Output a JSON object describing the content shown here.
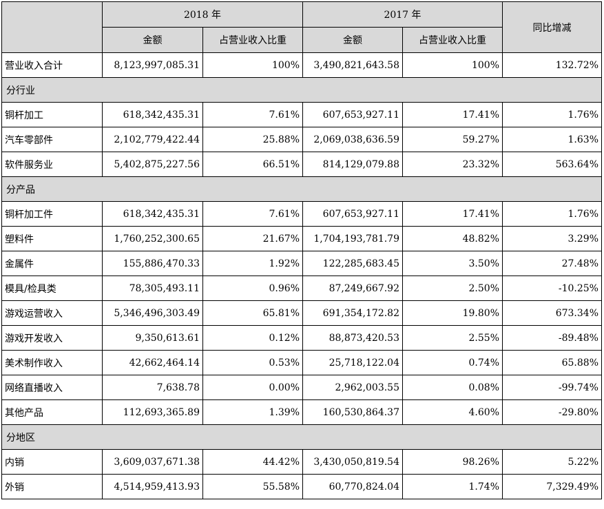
{
  "header": {
    "year_2018": "2018 年",
    "year_2017": "2017 年",
    "amount": "金额",
    "share": "占营业收入比重",
    "yoy": "同比增减"
  },
  "total": {
    "label": "营业收入合计",
    "a2018": "8,123,997,085.31",
    "s2018": "100%",
    "a2017": "3,490,821,643.58",
    "s2017": "100%",
    "yoy": "132.72%"
  },
  "sections": [
    {
      "title": "分行业",
      "rows": [
        {
          "label": "铜杆加工",
          "a2018": "618,342,435.31",
          "s2018": "7.61%",
          "a2017": "607,653,927.11",
          "s2017": "17.41%",
          "yoy": "1.76%"
        },
        {
          "label": "汽车零部件",
          "a2018": "2,102,779,422.44",
          "s2018": "25.88%",
          "a2017": "2,069,038,636.59",
          "s2017": "59.27%",
          "yoy": "1.63%"
        },
        {
          "label": "软件服务业",
          "a2018": "5,402,875,227.56",
          "s2018": "66.51%",
          "a2017": "814,129,079.88",
          "s2017": "23.32%",
          "yoy": "563.64%"
        }
      ]
    },
    {
      "title": "分产品",
      "rows": [
        {
          "label": "铜杆加工件",
          "a2018": "618,342,435.31",
          "s2018": "7.61%",
          "a2017": "607,653,927.11",
          "s2017": "17.41%",
          "yoy": "1.76%"
        },
        {
          "label": "塑料件",
          "a2018": "1,760,252,300.65",
          "s2018": "21.67%",
          "a2017": "1,704,193,781.79",
          "s2017": "48.82%",
          "yoy": "3.29%"
        },
        {
          "label": "金属件",
          "a2018": "155,886,470.33",
          "s2018": "1.92%",
          "a2017": "122,285,683.45",
          "s2017": "3.50%",
          "yoy": "27.48%"
        },
        {
          "label": "模具/检具类",
          "a2018": "78,305,493.11",
          "s2018": "0.96%",
          "a2017": "87,249,667.92",
          "s2017": "2.50%",
          "yoy": "-10.25%"
        },
        {
          "label": "游戏运营收入",
          "a2018": "5,346,496,303.49",
          "s2018": "65.81%",
          "a2017": "691,354,172.82",
          "s2017": "19.80%",
          "yoy": "673.34%"
        },
        {
          "label": "游戏开发收入",
          "a2018": "9,350,613.61",
          "s2018": "0.12%",
          "a2017": "88,873,420.53",
          "s2017": "2.55%",
          "yoy": "-89.48%"
        },
        {
          "label": "美术制作收入",
          "a2018": "42,662,464.14",
          "s2018": "0.53%",
          "a2017": "25,718,122.04",
          "s2017": "0.74%",
          "yoy": "65.88%"
        },
        {
          "label": "网络直播收入",
          "a2018": "7,638.78",
          "s2018": "0.00%",
          "a2017": "2,962,003.55",
          "s2017": "0.08%",
          "yoy": "-99.74%"
        },
        {
          "label": "其他产品",
          "a2018": "112,693,365.89",
          "s2018": "1.39%",
          "a2017": "160,530,864.37",
          "s2017": "4.60%",
          "yoy": "-29.80%"
        }
      ]
    },
    {
      "title": "分地区",
      "rows": [
        {
          "label": "内销",
          "a2018": "3,609,037,671.38",
          "s2018": "44.42%",
          "a2017": "3,430,050,819.54",
          "s2017": "98.26%",
          "yoy": "5.22%"
        },
        {
          "label": "外销",
          "a2018": "4,514,959,413.93",
          "s2018": "55.58%",
          "a2017": "60,770,824.04",
          "s2017": "1.74%",
          "yoy": "7,329.49%"
        }
      ]
    }
  ],
  "colors": {
    "header_bg": "#d9d9d9",
    "border": "#000000"
  }
}
